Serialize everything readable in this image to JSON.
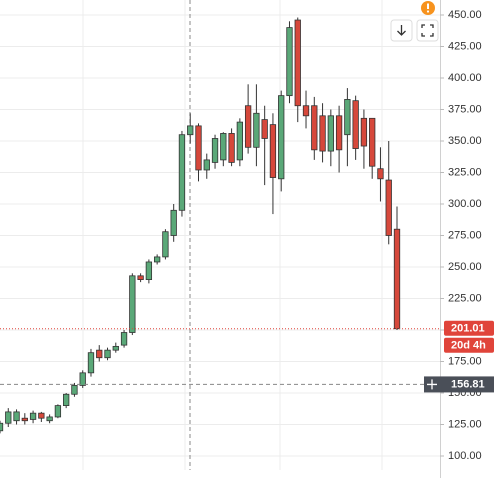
{
  "chart_data": {
    "type": "candlestick",
    "open": [
      120,
      126,
      128,
      130,
      129,
      134,
      128,
      131,
      140,
      149,
      156,
      166,
      184,
      178,
      184,
      188,
      198,
      243,
      240,
      254,
      258,
      275,
      295,
      355,
      362,
      327,
      333,
      335,
      356,
      335,
      378,
      345,
      367,
      363,
      320,
      386,
      446,
      378,
      378,
      370,
      342,
      370,
      355,
      382,
      368,
      368,
      328,
      319,
      280
    ],
    "high": [
      128,
      138,
      137,
      134,
      136,
      135,
      133,
      141,
      150,
      158,
      168,
      185,
      188,
      186,
      190,
      200,
      245,
      245,
      256,
      260,
      280,
      300,
      358,
      372,
      364,
      340,
      355,
      357,
      360,
      368,
      395,
      395,
      378,
      372,
      390,
      445,
      448,
      390,
      385,
      380,
      375,
      378,
      392,
      386,
      375,
      368,
      345,
      350,
      298
    ],
    "low": [
      118,
      123,
      125,
      125,
      126,
      127,
      126,
      130,
      138,
      147,
      154,
      163,
      175,
      176,
      182,
      186,
      196,
      238,
      237,
      252,
      256,
      270,
      290,
      348,
      318,
      320,
      328,
      330,
      330,
      330,
      340,
      330,
      315,
      292,
      310,
      380,
      365,
      360,
      335,
      333,
      330,
      325,
      330,
      335,
      328,
      320,
      302,
      268,
      200
    ],
    "close": [
      126,
      135,
      135,
      128,
      134,
      130,
      131,
      140,
      149,
      156,
      166,
      182,
      178,
      184,
      187,
      198,
      243,
      240,
      254,
      258,
      278,
      295,
      355,
      362,
      327,
      335,
      352,
      356,
      333,
      365,
      345,
      372,
      352,
      321,
      386,
      440,
      378,
      370,
      343,
      342,
      370,
      343,
      383,
      344,
      346,
      330,
      320,
      275,
      201.01
    ],
    "up_color": "#5aa878",
    "down_color": "#d6483b",
    "ylim": [
      98,
      460
    ],
    "yticks": [
      {
        "value": 100,
        "label": "100.00"
      },
      {
        "value": 125,
        "label": "125.00"
      },
      {
        "value": 150,
        "label": "150.00"
      },
      {
        "value": 175,
        "label": "175.00"
      },
      {
        "value": 200,
        "label": "200.00"
      },
      {
        "value": 225,
        "label": "225.00"
      },
      {
        "value": 250,
        "label": "250.00"
      },
      {
        "value": 275,
        "label": "275.00"
      },
      {
        "value": 300,
        "label": "300.00"
      },
      {
        "value": 325,
        "label": "325.00"
      },
      {
        "value": 350,
        "label": "350.00"
      },
      {
        "value": 375,
        "label": "375.00"
      },
      {
        "value": 400,
        "label": "400.00"
      },
      {
        "value": 425,
        "label": "425.00"
      },
      {
        "value": 450,
        "label": "450.00"
      }
    ],
    "grid": true,
    "last_price": 201.01,
    "countdown": "20d 4h",
    "crosshair_price": 156.81
  }
}
